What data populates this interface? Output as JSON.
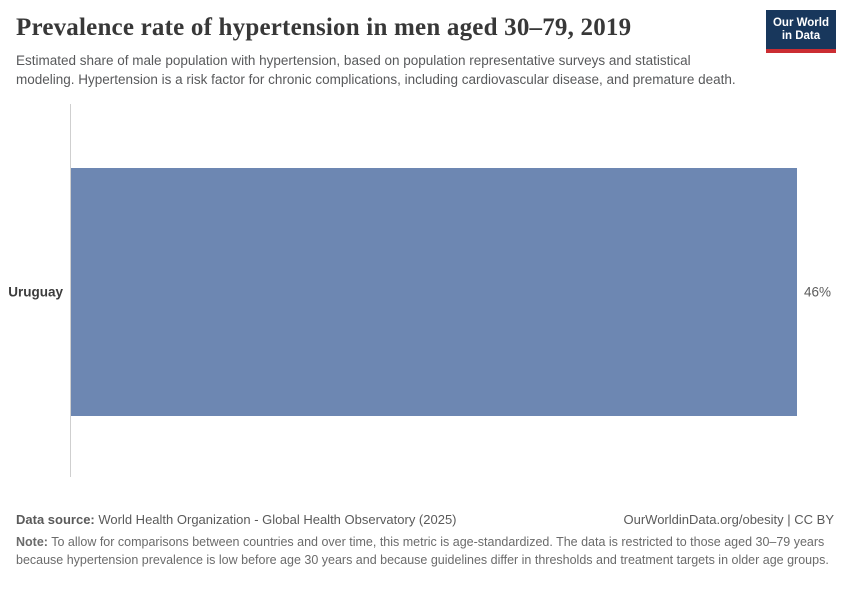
{
  "header": {
    "title": "Prevalence rate of hypertension in men aged 30–79, 2019",
    "subtitle": "Estimated share of male population with hypertension, based on population representative surveys and statistical modeling. Hypertension is a risk factor for chronic complications, including cardiovascular disease, and premature death.",
    "logo": {
      "line1": "Our World",
      "line2": "in Data"
    }
  },
  "chart_data": {
    "type": "bar",
    "orientation": "horizontal",
    "categories": [
      "Uruguay"
    ],
    "values": [
      46
    ],
    "value_labels": [
      "46%"
    ],
    "unit": "%",
    "xlim": [
      0,
      46
    ],
    "title": "Prevalence rate of hypertension in men aged 30–79, 2019",
    "xlabel": "",
    "ylabel": "",
    "grid": false,
    "legend": "none",
    "bar_color": "#6d87b2",
    "axis_color": "#cfcfcf"
  },
  "footer": {
    "data_source_label": "Data source:",
    "data_source_text": " World Health Organization - Global Health Observatory (2025)",
    "attribution": "OurWorldinData.org/obesity | CC BY",
    "note_label": "Note:",
    "note_text": " To allow for comparisons between countries and over time, this metric is age-standardized. The data is restricted to those aged 30–79 years because hypertension prevalence is low before age 30 years and because guidelines differ in thresholds and treatment targets in older age groups."
  },
  "colors": {
    "bar": "#6d87b2",
    "axis": "#cfcfcf",
    "logo_navy": "#18375c",
    "logo_red": "#cb2d32",
    "title_text": "#383838",
    "body_text": "#58595b"
  }
}
